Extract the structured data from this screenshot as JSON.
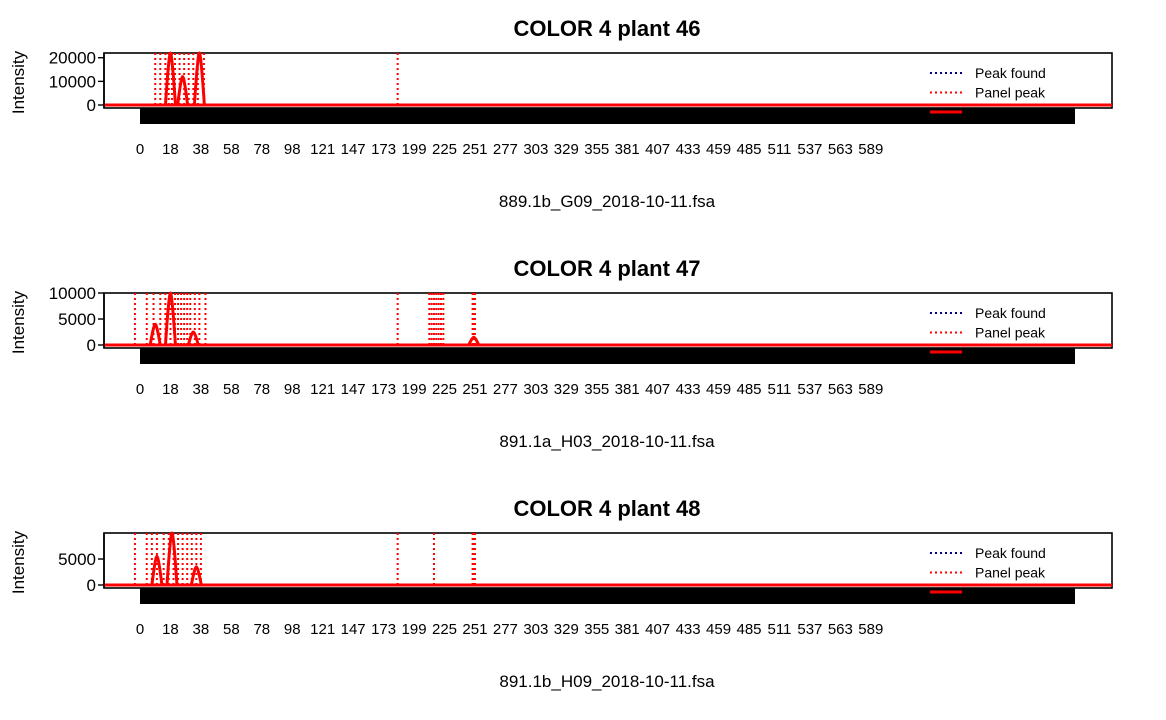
{
  "colors": {
    "peak_found": "#00008B",
    "panel_peak": "#FF0000",
    "signal": "#FF0000",
    "axis": "#000000",
    "rug": "#000000"
  },
  "chart_data": [
    {
      "type": "line",
      "title": "COLOR 4 plant 46",
      "xlabel": "889.1b_G09_2018-10-11.fsa",
      "ylabel": "Intensity",
      "x_tick_labels": [
        "0",
        "18",
        "38",
        "58",
        "78",
        "98",
        "121",
        "147",
        "173",
        "199",
        "225",
        "251",
        "277",
        "303",
        "329",
        "355",
        "381",
        "407",
        "433",
        "459",
        "485",
        "511",
        "537",
        "563",
        "589"
      ],
      "y_ticks": [
        0,
        10000,
        20000
      ],
      "y_tick_labels": [
        "0",
        "10000",
        "20000"
      ],
      "ylim": [
        0,
        22000
      ],
      "legend_position": "top-right",
      "legend": [
        {
          "label": "Peak found",
          "color": "#00008B",
          "style": "dotted"
        },
        {
          "label": "Panel peak",
          "color": "#FF0000",
          "style": "dotted"
        },
        {
          "label": "",
          "color": "#FF0000",
          "style": "solid"
        }
      ],
      "panel_peak_lines_x": [
        9,
        12,
        15,
        17,
        19,
        21,
        24,
        27,
        30,
        33,
        36,
        40,
        185
      ],
      "signal_peaks": [
        {
          "x": 18,
          "height": 22000
        },
        {
          "x": 26,
          "height": 12000
        },
        {
          "x": 37,
          "height": 22000
        }
      ]
    },
    {
      "type": "line",
      "title": "COLOR 4 plant 47",
      "xlabel": "891.1a_H03_2018-10-11.fsa",
      "ylabel": "Intensity",
      "x_tick_labels": [
        "0",
        "18",
        "38",
        "58",
        "78",
        "98",
        "121",
        "147",
        "173",
        "199",
        "225",
        "251",
        "277",
        "303",
        "329",
        "355",
        "381",
        "407",
        "433",
        "459",
        "485",
        "511",
        "537",
        "563",
        "589"
      ],
      "y_ticks": [
        0,
        5000,
        10000
      ],
      "y_tick_labels": [
        "0",
        "5000",
        "10000"
      ],
      "ylim": [
        0,
        10000
      ],
      "legend_position": "top-right",
      "legend": [
        {
          "label": "Peak found",
          "color": "#00008B",
          "style": "dotted"
        },
        {
          "label": "Panel peak",
          "color": "#FF0000",
          "style": "dotted"
        },
        {
          "label": "",
          "color": "#FF0000",
          "style": "solid"
        }
      ],
      "panel_peak_lines_x": [
        -3,
        4,
        8,
        12,
        15,
        18,
        21,
        23,
        25,
        27,
        29,
        31,
        34,
        37,
        41,
        185,
        212,
        214,
        216,
        218,
        220,
        222,
        224,
        249,
        250,
        251
      ],
      "signal_peaks": [
        {
          "x": 9,
          "height": 4000
        },
        {
          "x": 18,
          "height": 10000
        },
        {
          "x": 33,
          "height": 2500
        },
        {
          "x": 250,
          "height": 1500
        }
      ]
    },
    {
      "type": "line",
      "title": "COLOR 4 plant 48",
      "xlabel": "891.1b_H09_2018-10-11.fsa",
      "ylabel": "Intensity",
      "x_tick_labels": [
        "0",
        "18",
        "38",
        "58",
        "78",
        "98",
        "121",
        "147",
        "173",
        "199",
        "225",
        "251",
        "277",
        "303",
        "329",
        "355",
        "381",
        "407",
        "433",
        "459",
        "485",
        "511",
        "537",
        "563",
        "589"
      ],
      "y_ticks": [
        0,
        5000
      ],
      "y_tick_labels": [
        "0",
        "5000"
      ],
      "ylim": [
        0,
        10000
      ],
      "legend_position": "top-right",
      "legend": [
        {
          "label": "Peak found",
          "color": "#00008B",
          "style": "dotted"
        },
        {
          "label": "Panel peak",
          "color": "#FF0000",
          "style": "dotted"
        },
        {
          "label": "",
          "color": "#FF0000",
          "style": "solid"
        }
      ],
      "panel_peak_lines_x": [
        -3,
        4,
        7,
        10,
        14,
        17,
        20,
        23,
        26,
        29,
        32,
        35,
        38,
        185,
        216,
        249,
        250,
        251
      ],
      "signal_peaks": [
        {
          "x": 10,
          "height": 5500
        },
        {
          "x": 19,
          "height": 10000
        },
        {
          "x": 35,
          "height": 3500
        }
      ]
    }
  ]
}
